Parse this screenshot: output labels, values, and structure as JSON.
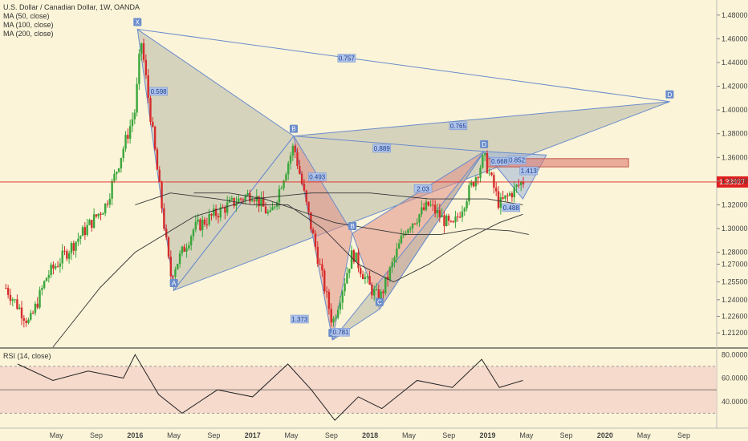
{
  "legend": {
    "title": "U.S. Dollar / Canadian Dollar, 1W, OANDA",
    "ma50": "MA (50, close)",
    "ma100": "MA (100, close)",
    "ma200": "MA (200, close)"
  },
  "rsi_label": "RSI (14, close)",
  "colors": {
    "background": "#fbf4d8",
    "up": "#3aa63a",
    "down": "#d62b2b",
    "pattern_fill_gray": "#b8b8a8",
    "pattern_fill_red": "#e08f86",
    "pattern_fill_blue": "#9fb3d8",
    "pattern_line": "#6a8ccc",
    "price_line": "#e02020",
    "rsi_band": "#f3cfc8"
  },
  "chart_data": [
    {
      "type": "candlestick",
      "title": "U.S. Dollar / Canadian Dollar, 1W, OANDA",
      "y_ticks": [
        "1.48000",
        "1.46000",
        "1.44000",
        "1.42000",
        "1.40000",
        "1.38000",
        "1.36000",
        "1.34000",
        "1.32000",
        "1.30000",
        "1.28000",
        "1.27000",
        "1.25500",
        "1.24000",
        "1.22600",
        "1.21200"
      ],
      "x_ticks": [
        "May",
        "Sep",
        "2016",
        "May",
        "Sep",
        "2017",
        "May",
        "Sep",
        "2018",
        "May",
        "Sep",
        "2019",
        "May",
        "Sep",
        "2020",
        "May",
        "Sep"
      ],
      "ylim": [
        1.2,
        1.49
      ],
      "last_price": "1.33927",
      "pattern_points": [
        {
          "label": "X",
          "t": 2016.02,
          "price": 1.468
        },
        {
          "label": "A",
          "t": 2016.33,
          "price": 1.248
        },
        {
          "label": "B",
          "t": 2017.35,
          "price": 1.378
        },
        {
          "label": "D",
          "t": 2020.55,
          "price": 1.407
        },
        {
          "label": "A",
          "t": 2017.68,
          "price": 1.206
        },
        {
          "label": "B",
          "t": 2017.85,
          "price": 1.296
        },
        {
          "label": "C",
          "t": 2018.08,
          "price": 1.232
        },
        {
          "label": "D",
          "t": 2018.97,
          "price": 1.365
        }
      ],
      "ratios": [
        "0.598",
        "0.757",
        "0.889",
        "0.765",
        "0.493",
        "1.373",
        "0.781",
        "2.03",
        "0.668",
        "1.413",
        "0.488",
        "0.852"
      ],
      "ma_series": [
        {
          "name": "MA (50, close)",
          "t": [
            2016.0,
            2016.3,
            2016.7,
            2017.0,
            2017.3,
            2017.6,
            2017.9,
            2018.2,
            2018.5,
            2018.8,
            2019.1,
            2019.3
          ],
          "values": [
            1.32,
            1.33,
            1.325,
            1.32,
            1.32,
            1.3,
            1.27,
            1.255,
            1.27,
            1.29,
            1.305,
            1.312
          ]
        },
        {
          "name": "MA (100, close)",
          "t": [
            2016.5,
            2016.8,
            2017.1,
            2017.4,
            2017.7,
            2018.0,
            2018.3,
            2018.6,
            2018.9,
            2019.2,
            2019.35
          ],
          "values": [
            1.33,
            1.33,
            1.325,
            1.315,
            1.305,
            1.3,
            1.295,
            1.295,
            1.3,
            1.298,
            1.295
          ]
        },
        {
          "name": "MA (200, close)",
          "t": [
            2015.3,
            2015.7,
            2016.0,
            2016.5,
            2017.0,
            2017.5,
            2018.0,
            2018.5,
            2019.0,
            2019.3
          ],
          "values": [
            1.2,
            1.25,
            1.28,
            1.31,
            1.325,
            1.33,
            1.33,
            1.325,
            1.325,
            1.32
          ]
        }
      ]
    },
    {
      "type": "line",
      "title": "RSI (14, close)",
      "y_ticks": [
        "80.0000",
        "60.0000",
        "40.0000"
      ],
      "levels": [
        70,
        30
      ],
      "ylim": [
        20,
        85
      ],
      "t": [
        2015.0,
        2015.3,
        2015.6,
        2015.9,
        2016.0,
        2016.2,
        2016.4,
        2016.7,
        2017.0,
        2017.3,
        2017.5,
        2017.7,
        2017.9,
        2018.1,
        2018.4,
        2018.7,
        2018.95,
        2019.1,
        2019.3
      ],
      "values": [
        72,
        58,
        66,
        60,
        80,
        46,
        30,
        50,
        44,
        72,
        50,
        24,
        44,
        34,
        58,
        52,
        76,
        52,
        58
      ]
    }
  ]
}
